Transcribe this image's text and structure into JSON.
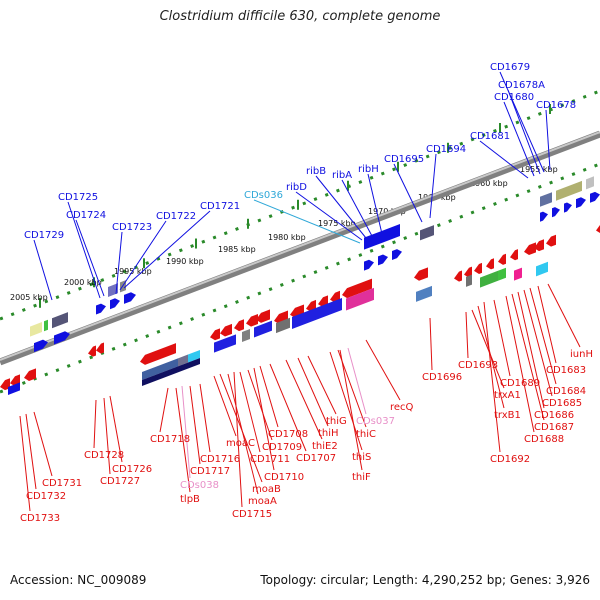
{
  "title": "Clostridium difficile 630, complete genome",
  "footer": {
    "accession": "Accession: NC_009089",
    "summary": "Topology: circular; Length: 4,290,252 bp; Genes: 3,926"
  },
  "colors": {
    "forward_gene": "#1010e0",
    "reverse_gene": "#e01010",
    "cds_label": "#30a8d8",
    "cds_label_reverse": "#e890c8",
    "scale_tick": "#2a8a2a",
    "backbone": "#808080"
  },
  "scale_ticks": [
    "2005 kbp",
    "2000 kbp",
    "1995 kbp",
    "1990 kbp",
    "1985 kbp",
    "1980 kbp",
    "1975 kbp",
    "1970 kbp",
    "1965 kbp",
    "1960 kbp",
    "1955 kbp"
  ],
  "top_labels": [
    "CD1729",
    "CD1725",
    "CD1724",
    "CD1723",
    "CD1722",
    "CD1721",
    "CDs036",
    "ribD",
    "ribB",
    "ribA",
    "ribH",
    "CD1695",
    "CD1694",
    "CD1681",
    "CD1680",
    "CD1678A",
    "CD1679",
    "CD1678"
  ],
  "bottom_labels": [
    "CD1733",
    "CD1732",
    "CD1731",
    "CD1728",
    "CD1727",
    "CD1726",
    "CD1718",
    "tlpB",
    "CDs038",
    "CD1717",
    "CD1716",
    "moaC",
    "moaB",
    "moaA",
    "CD1715",
    "CD1711",
    "CD1709",
    "CD1710",
    "CD1708",
    "CD1707",
    "thiE2",
    "thiH",
    "thiG",
    "thiC",
    "thiS",
    "thiF",
    "CDs037",
    "recQ",
    "CD1696",
    "CD1693",
    "trxA1",
    "trxB1",
    "CD1692",
    "CD1689",
    "CD1688",
    "CD1687",
    "CD1686",
    "CD1685",
    "CD1684",
    "CD1683",
    "iunH"
  ]
}
